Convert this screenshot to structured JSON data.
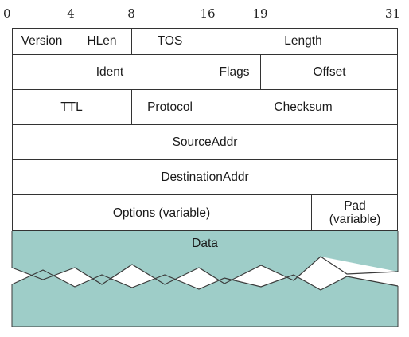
{
  "bit_positions": [
    "0",
    "4",
    "8",
    "16",
    "19",
    "31"
  ],
  "rows": [
    {
      "cells": [
        {
          "name": "version-field",
          "label": "Version"
        },
        {
          "name": "hlen-field",
          "label": "HLen"
        },
        {
          "name": "tos-field",
          "label": "TOS"
        },
        {
          "name": "length-field",
          "label": "Length"
        }
      ]
    },
    {
      "cells": [
        {
          "name": "ident-field",
          "label": "Ident"
        },
        {
          "name": "flags-field",
          "label": "Flags"
        },
        {
          "name": "offset-field",
          "label": "Offset"
        }
      ]
    },
    {
      "cells": [
        {
          "name": "ttl-field",
          "label": "TTL"
        },
        {
          "name": "protocol-field",
          "label": "Protocol"
        },
        {
          "name": "checksum-field",
          "label": "Checksum"
        }
      ]
    },
    {
      "cells": [
        {
          "name": "source-addr-field",
          "label": "SourceAddr"
        }
      ]
    },
    {
      "cells": [
        {
          "name": "destination-addr-field",
          "label": "DestinationAddr"
        }
      ]
    },
    {
      "cells": [
        {
          "name": "options-field",
          "label": "Options (variable)"
        },
        {
          "name": "pad-field",
          "label": "Pad\n(variable)"
        }
      ]
    }
  ],
  "data_section": {
    "label": "Data",
    "fill_color": "#9ecdc8",
    "stroke_color": "#3a3a3a"
  }
}
